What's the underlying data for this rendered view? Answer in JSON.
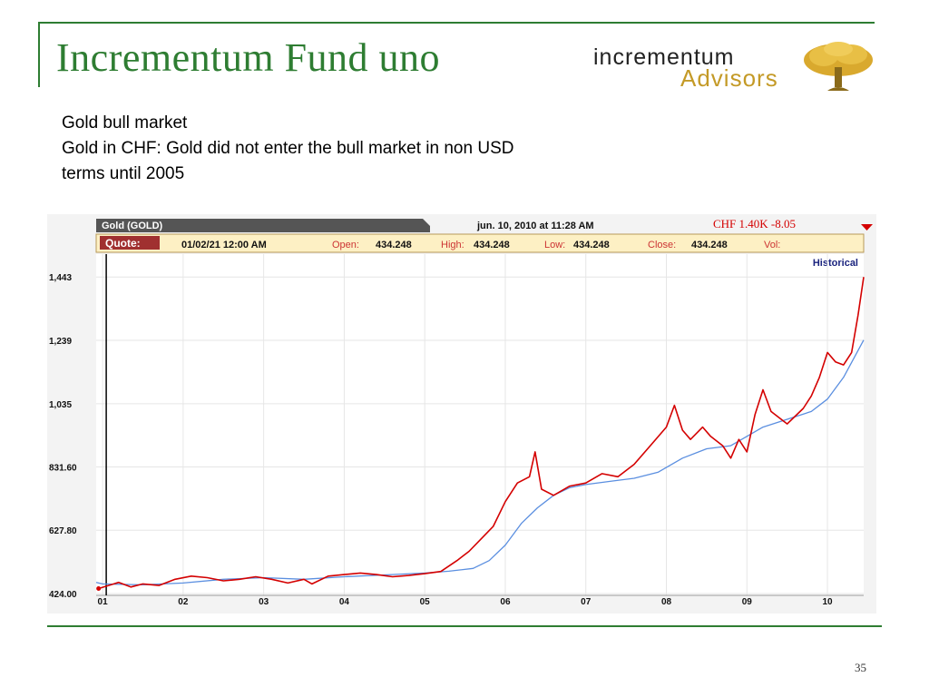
{
  "slide": {
    "title": "Incrementum Fund uno",
    "logo_line1": "incrementum",
    "logo_line2": "Advisors",
    "subtitle_lines": [
      "Gold bull market",
      "Gold in CHF: Gold did not enter the bull market in non USD",
      "terms until 2005"
    ],
    "page_number": "35"
  },
  "chart_header": {
    "symbol": "Gold (GOLD)",
    "timestamp": "jun. 10, 2010 at 11:28 AM",
    "ticker": "CHF 1.40K -8.05",
    "quote_label": "Quote:",
    "quote_date": "01/02/21 12:00 AM",
    "open_label": "Open:",
    "open": "434.248",
    "high_label": "High:",
    "high": "434.248",
    "low_label": "Low:",
    "low": "434.248",
    "close_label": "Close:",
    "close": "434.248",
    "vol_label": "Vol:",
    "mode": "Historical"
  },
  "colors": {
    "price_line": "#d40000",
    "moving_average": "#5b8fe0",
    "header_bar": "#555555",
    "quote_bg": "#fdf0c4",
    "quote_label_bg": "#a03030",
    "ticker_red": "#d40000",
    "frame_green": "#2e7d32"
  },
  "chart_data": {
    "type": "line",
    "ylim": [
      424.0,
      1470
    ],
    "xlim": [
      2000.92,
      2010.45
    ],
    "y_ticks": [
      1443,
      1239,
      1035,
      831.6,
      627.8,
      424.0
    ],
    "y_tick_labels": [
      "1,443",
      "1,239",
      "1,035",
      "831.60",
      "627.80",
      "424.00"
    ],
    "x_ticks": [
      2001,
      2002,
      2003,
      2004,
      2005,
      2006,
      2007,
      2008,
      2009,
      2010
    ],
    "x_tick_labels": [
      "01",
      "02",
      "03",
      "04",
      "05",
      "06",
      "07",
      "08",
      "09",
      "10"
    ],
    "grid": true,
    "series": [
      {
        "key": "price",
        "x": [
          2000.95,
          2001.2,
          2001.35,
          2001.5,
          2001.7,
          2001.9,
          2002.1,
          2002.3,
          2002.5,
          2002.7,
          2002.9,
          2003.1,
          2003.3,
          2003.5,
          2003.6,
          2003.8,
          2004.0,
          2004.2,
          2004.4,
          2004.6,
          2004.8,
          2005.0,
          2005.2,
          2005.4,
          2005.55,
          2005.7,
          2005.85,
          2006.0,
          2006.15,
          2006.3,
          2006.37,
          2006.45,
          2006.6,
          2006.8,
          2007.0,
          2007.2,
          2007.4,
          2007.6,
          2007.8,
          2008.0,
          2008.1,
          2008.2,
          2008.3,
          2008.45,
          2008.55,
          2008.7,
          2008.8,
          2008.9,
          2009.0,
          2009.1,
          2009.2,
          2009.3,
          2009.5,
          2009.7,
          2009.8,
          2009.9,
          2010.0,
          2010.1,
          2010.2,
          2010.3,
          2010.38,
          2010.45
        ],
        "y": [
          440,
          460,
          445,
          455,
          450,
          470,
          480,
          475,
          465,
          470,
          478,
          470,
          458,
          470,
          455,
          480,
          485,
          490,
          485,
          478,
          482,
          488,
          495,
          530,
          560,
          600,
          640,
          720,
          780,
          800,
          880,
          760,
          740,
          770,
          780,
          810,
          800,
          840,
          900,
          960,
          1030,
          950,
          920,
          960,
          930,
          900,
          860,
          920,
          880,
          1000,
          1080,
          1010,
          970,
          1020,
          1060,
          1120,
          1200,
          1170,
          1160,
          1200,
          1320,
          1443
        ]
      },
      {
        "key": "moving_average",
        "x": [
          2000.92,
          2001.0,
          2001.5,
          2002.0,
          2002.5,
          2003.0,
          2003.5,
          2004.0,
          2004.5,
          2005.0,
          2005.3,
          2005.6,
          2005.8,
          2006.0,
          2006.2,
          2006.4,
          2006.6,
          2006.8,
          2007.0,
          2007.3,
          2007.6,
          2007.9,
          2008.2,
          2008.5,
          2008.8,
          2009.0,
          2009.2,
          2009.5,
          2009.8,
          2010.0,
          2010.2,
          2010.45
        ],
        "y": [
          460,
          455,
          452,
          458,
          470,
          475,
          470,
          478,
          484,
          490,
          496,
          505,
          530,
          580,
          650,
          700,
          740,
          765,
          775,
          785,
          795,
          815,
          860,
          890,
          900,
          930,
          960,
          985,
          1010,
          1050,
          1120,
          1240
        ]
      }
    ]
  }
}
